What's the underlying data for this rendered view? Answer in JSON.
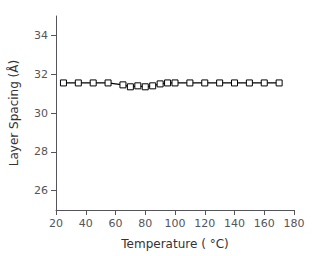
{
  "chart_data": {
    "type": "line",
    "x": [
      25,
      35,
      45,
      55,
      65,
      70,
      75,
      80,
      85,
      90,
      95,
      100,
      110,
      120,
      130,
      140,
      150,
      160,
      170
    ],
    "values": [
      31.55,
      31.55,
      31.55,
      31.55,
      31.45,
      31.35,
      31.4,
      31.35,
      31.4,
      31.5,
      31.55,
      31.55,
      31.55,
      31.55,
      31.55,
      31.55,
      31.55,
      31.55,
      31.55
    ],
    "xlabel": "Temperature ( °C)",
    "ylabel": "Layer Spacing (Å)",
    "xlim": [
      20,
      180
    ],
    "ylim": [
      25,
      35
    ],
    "xticks": [
      20,
      40,
      60,
      80,
      100,
      120,
      140,
      160,
      180
    ],
    "yticks": [
      26,
      28,
      30,
      32,
      34
    ],
    "color": "#000000",
    "marker": "square",
    "grid": false
  }
}
